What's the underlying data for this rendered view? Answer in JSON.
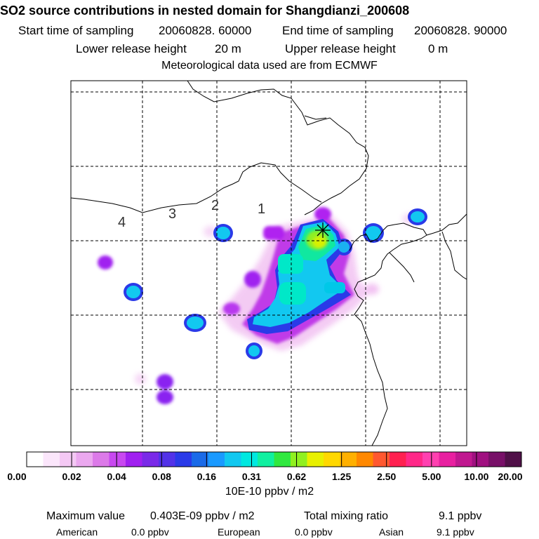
{
  "title": "SO2 source contributions in nested domain for Shangdianzi_200608",
  "sampling": {
    "start_label": "Start time of sampling",
    "start_value": "20060828. 60000",
    "end_label": "End time of sampling",
    "end_value": "20060828. 90000"
  },
  "release": {
    "lower_label": "Lower release height",
    "lower_value": "20 m",
    "upper_label": "Upper release height",
    "upper_value": "0 m"
  },
  "meteo_note": "Meteorological data used are from ECMWF",
  "ring_labels": [
    "4",
    "3",
    "2",
    "1"
  ],
  "colorbar": {
    "colors": [
      "#ffffff",
      "#fbe6fb",
      "#f4c8f4",
      "#eba8ef",
      "#dc7ae8",
      "#c848f0",
      "#a020f0",
      "#7a2ae8",
      "#5232e8",
      "#2a3ae8",
      "#1a6ae8",
      "#1a9aff",
      "#12c8f0",
      "#00e8e0",
      "#10f0a0",
      "#30e840",
      "#90f020",
      "#e8f000",
      "#ffd800",
      "#ffb000",
      "#ff8800",
      "#ff5830",
      "#ff2050",
      "#ff2888",
      "#ff40b0",
      "#e820a0",
      "#c01890",
      "#a01080",
      "#781068",
      "#501048"
    ],
    "tick_labels": [
      "0.00",
      "0.02",
      "0.04",
      "0.08",
      "0.16",
      "0.31",
      "0.62",
      "1.25",
      "2.50",
      "5.00",
      "10.00",
      "20.00"
    ],
    "unit": "10E-10 ppbv / m2"
  },
  "stats": {
    "max_label": "Maximum value",
    "max_value": "0.403E-09 ppbv / m2",
    "total_label": "Total mixing ratio",
    "total_value": "9.1 ppbv",
    "american_label": "American",
    "american_value": "0.0 ppbv",
    "european_label": "European",
    "european_value": "0.0 ppbv",
    "asian_label": "Asian",
    "asian_value": "9.1 ppbv"
  }
}
